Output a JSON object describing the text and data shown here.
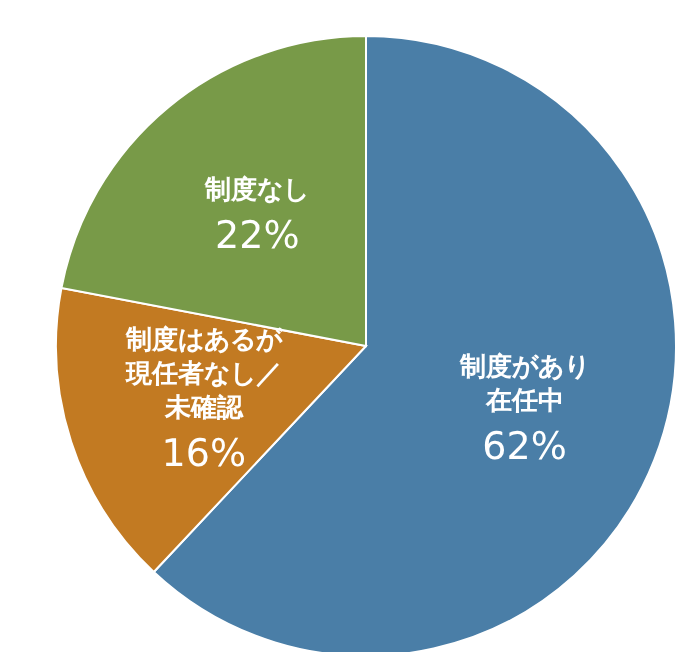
{
  "chart_data": {
    "type": "pie",
    "categories": [
      "制度があり在任中",
      "制度はあるが現任者なし／未確認",
      "制度なし"
    ],
    "values": [
      62,
      16,
      22
    ],
    "value_labels": [
      "62%",
      "16%",
      "22%"
    ],
    "colors": [
      "#4a7ea7",
      "#c27a22",
      "#789a48"
    ],
    "legend": false
  }
}
